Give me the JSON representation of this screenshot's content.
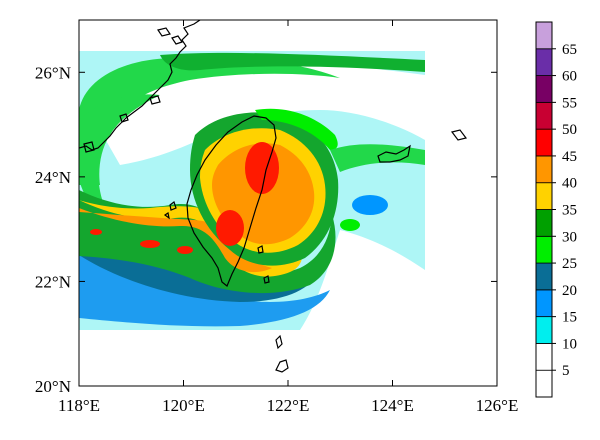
{
  "map": {
    "x_axis": {
      "min": 118,
      "max": 126,
      "ticks": [
        118,
        120,
        122,
        124,
        126
      ],
      "tick_labels": [
        "118°E",
        "120°E",
        "122°E",
        "124°E",
        "126°E"
      ]
    },
    "y_axis": {
      "min": 20,
      "max": 27,
      "ticks": [
        20,
        22,
        24,
        26
      ],
      "tick_labels": [
        "20°N",
        "22°N",
        "24°N",
        "26°N"
      ]
    },
    "field_extent": {
      "lon_min": 118.0,
      "lon_max": 124.7,
      "lat_min": 21.1,
      "lat_max": 26.4
    },
    "grid": false
  },
  "colorbar": {
    "labels": [
      "5",
      "10",
      "15",
      "20",
      "25",
      "30",
      "35",
      "40",
      "45",
      "50",
      "55",
      "60",
      "65"
    ],
    "colors": [
      "#ffffff",
      "#ffffff",
      "#00eeee",
      "#0096ff",
      "#0a6e96",
      "#00ee00",
      "#00a000",
      "#ffd200",
      "#ff9600",
      "#ff0000",
      "#c80032",
      "#780064",
      "#6a2ea8",
      "#c8a0dc"
    ]
  },
  "colors": {
    "coastline": "#000000",
    "frame": "#000000",
    "background": "#ffffff"
  }
}
